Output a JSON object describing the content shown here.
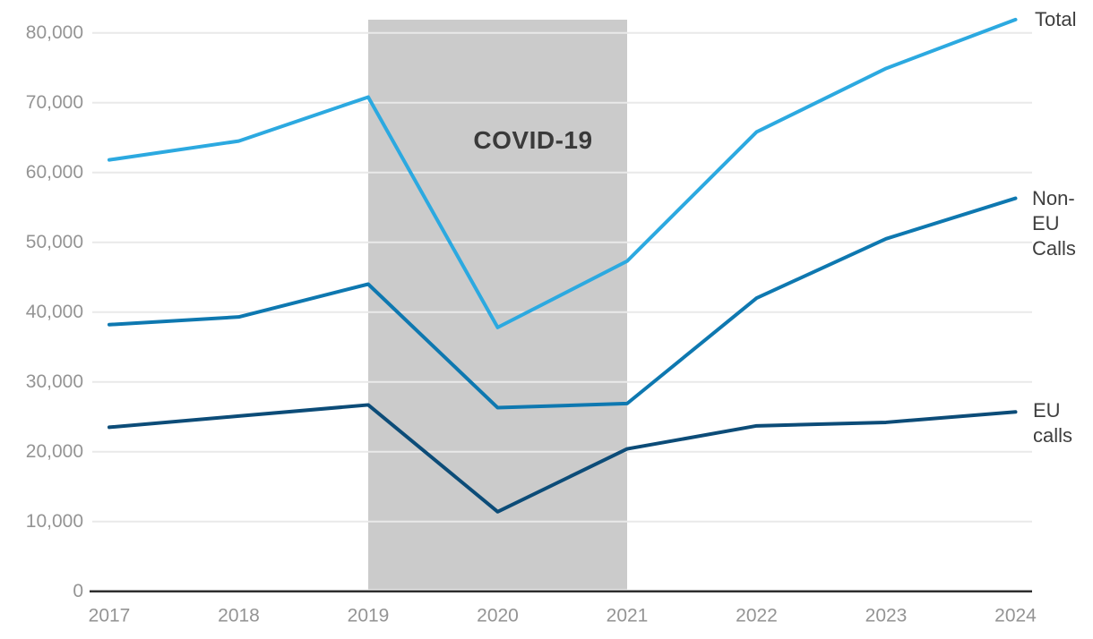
{
  "chart_data": {
    "type": "line",
    "title": "",
    "xlabel": "",
    "ylabel": "",
    "x_labels": [
      "2017",
      "2018",
      "2019",
      "2020",
      "2021",
      "2022",
      "2023",
      "2024"
    ],
    "ylim": [
      0,
      80000
    ],
    "ytick_values": [
      0,
      10000,
      20000,
      30000,
      40000,
      50000,
      60000,
      70000,
      80000
    ],
    "ytick_labels": [
      "0",
      "10,000",
      "20,000",
      "30,000",
      "40,000",
      "50,000",
      "60,000",
      "70,000",
      "80,000"
    ],
    "grid": true,
    "legend_position": "right-of-line-ends",
    "series": [
      {
        "name": "Total",
        "color": "#2CA9E0",
        "values": [
          61800,
          64500,
          70800,
          37800,
          47300,
          65800,
          74900,
          81900
        ],
        "label_lines": [
          "Total"
        ]
      },
      {
        "name": "Non-EU Calls",
        "color": "#0E78B0",
        "values": [
          38200,
          39300,
          44000,
          26300,
          26900,
          42000,
          50500,
          56300
        ],
        "label_lines": [
          "Non-",
          "EU",
          "Calls"
        ]
      },
      {
        "name": "EU calls",
        "color": "#0C4C78",
        "values": [
          23500,
          25100,
          26700,
          11400,
          20400,
          23700,
          24200,
          25700
        ],
        "label_lines": [
          "EU",
          "calls"
        ]
      }
    ],
    "annotation": {
      "label": "COVID-19",
      "x_from": "2019",
      "x_to": "2021",
      "band_color": "#CBCBCB",
      "text_color": "#3A3A3A"
    },
    "colors": {
      "gridline": "#E9E9E9",
      "axis_line": "#2E2E2E",
      "tick_label": "#949494",
      "series_label_text": "#3E3E3E"
    }
  }
}
